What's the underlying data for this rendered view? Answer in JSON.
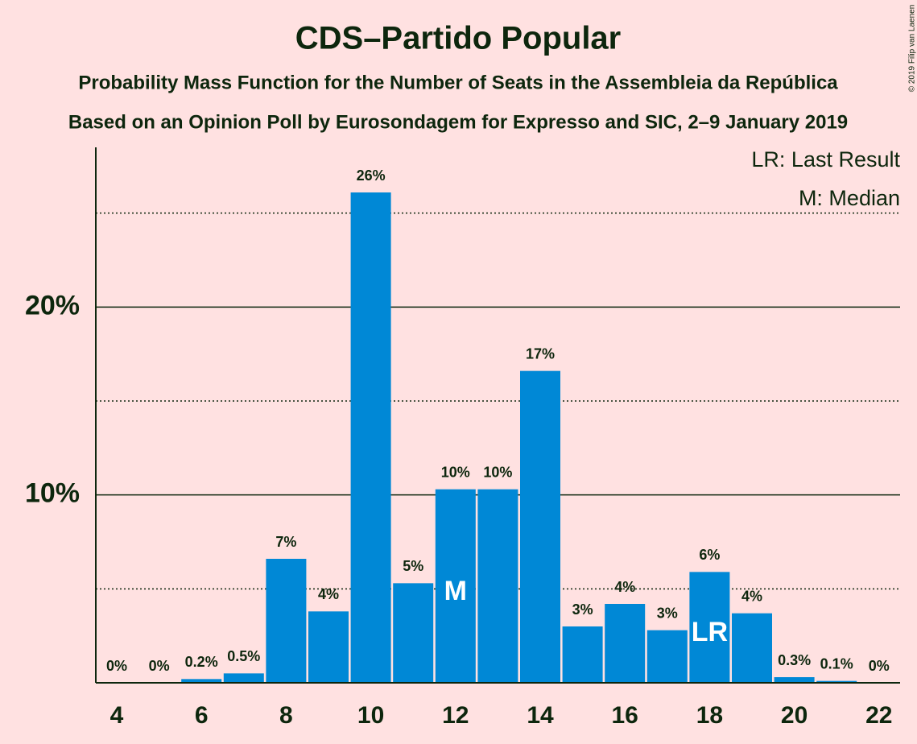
{
  "chart_data": {
    "type": "bar",
    "title": "CDS–Partido Popular",
    "subtitle": "Probability Mass Function for the Number of Seats in the Assembleia da República",
    "subtitle2": "Based on an Opinion Poll by Eurosondagem for Expresso and SIC, 2–9 January 2019",
    "copyright": "© 2019 Filip van Laenen",
    "legend": [
      "LR: Last Result",
      "M: Median"
    ],
    "legend_position": "top-right",
    "categories": [
      4,
      null,
      6,
      null,
      8,
      null,
      10,
      null,
      12,
      null,
      14,
      null,
      16,
      null,
      18,
      null,
      20,
      null,
      22
    ],
    "values": [
      0,
      0,
      0.2,
      0.5,
      6.6,
      3.8,
      26.1,
      5.3,
      10.3,
      10.3,
      16.6,
      3.0,
      4.2,
      2.8,
      5.9,
      3.7,
      0.3,
      0.1,
      0
    ],
    "value_labels": [
      "0%",
      "0%",
      "0.2%",
      "0.5%",
      "7%",
      "4%",
      "26%",
      "5%",
      "10%",
      "10%",
      "17%",
      "3%",
      "4%",
      "3%",
      "6%",
      "4%",
      "0.3%",
      "0.1%",
      "0%"
    ],
    "color": "#0088d6",
    "annotations": [
      {
        "index": 8,
        "text": "M"
      },
      {
        "index": 14,
        "text": "LR"
      }
    ],
    "ylim": [
      0,
      28.5
    ],
    "yticks": [
      {
        "value": 10,
        "label": "10%"
      },
      {
        "value": 20,
        "label": "20%"
      }
    ],
    "minor_yticks": [
      5,
      15,
      25
    ],
    "grid": true
  }
}
